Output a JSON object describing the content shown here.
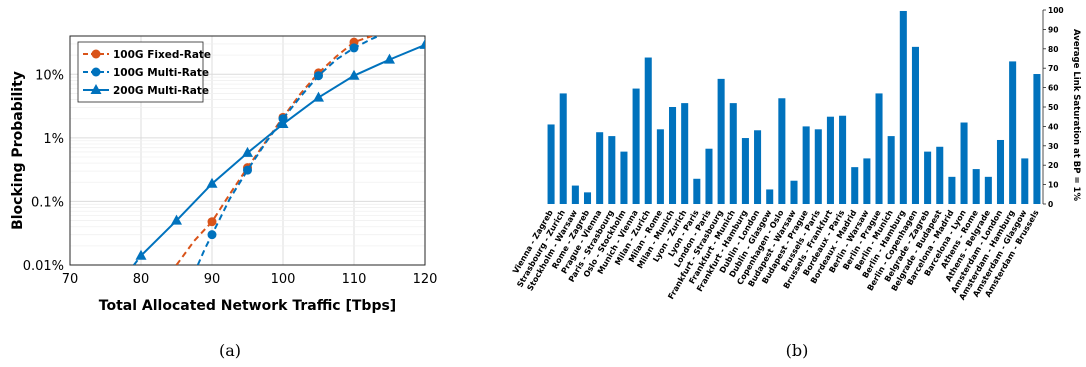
{
  "chart_data": [
    {
      "id": "a",
      "type": "line",
      "caption": "(a)",
      "xlabel": "Total Allocated Network Traffic [Tbps]",
      "ylabel": "Blocking Probability",
      "xlim": [
        70,
        120
      ],
      "xticks": [
        "70",
        "80",
        "90",
        "100",
        "110",
        "120"
      ],
      "yscale": "log",
      "ylim": [
        0.0001,
        0.4
      ],
      "yticks": [
        {
          "v": 0.0001,
          "label": "0.01%"
        },
        {
          "v": 0.001,
          "label": "0.1%"
        },
        {
          "v": 0.01,
          "label": "1%"
        },
        {
          "v": 0.1,
          "label": "10%"
        }
      ],
      "grid": true,
      "legend_position": "top-left",
      "series": [
        {
          "name": "100G Fixed-Rate",
          "color": "#d95319",
          "marker": "circle",
          "points": [
            [
              90,
              0.00048
            ],
            [
              95,
              0.0034
            ],
            [
              100,
              0.021
            ],
            [
              105,
              0.105
            ],
            [
              110,
              0.32
            ]
          ],
          "dashed": [
            [
              85,
              0.0001
            ],
            [
              87.5,
              0.00024
            ],
            [
              90,
              0.00048
            ],
            [
              92.5,
              0.0013
            ],
            [
              95,
              0.0034
            ],
            [
              97.5,
              0.0085
            ],
            [
              100,
              0.021
            ],
            [
              102.5,
              0.05
            ],
            [
              105,
              0.105
            ],
            [
              107.5,
              0.19
            ],
            [
              110,
              0.32
            ],
            [
              112.5,
              0.4
            ]
          ]
        },
        {
          "name": "100G Multi-Rate",
          "color": "#0072bd",
          "marker": "circle",
          "points": [
            [
              90,
              0.0003
            ],
            [
              95,
              0.0031
            ],
            [
              100,
              0.02
            ],
            [
              105,
              0.095
            ],
            [
              110,
              0.26
            ]
          ],
          "dashed": [
            [
              88,
              0.0001
            ],
            [
              89,
              0.00018
            ],
            [
              90,
              0.0003
            ],
            [
              92.5,
              0.0011
            ],
            [
              95,
              0.0031
            ],
            [
              97.5,
              0.0082
            ],
            [
              100,
              0.02
            ],
            [
              102.5,
              0.045
            ],
            [
              105,
              0.095
            ],
            [
              107.5,
              0.17
            ],
            [
              110,
              0.26
            ],
            [
              112.5,
              0.36
            ],
            [
              113.5,
              0.4
            ]
          ]
        },
        {
          "name": "200G Multi-Rate",
          "color": "#0072bd",
          "marker": "triangle",
          "points": [
            [
              80,
              0.00014
            ],
            [
              85,
              0.0005
            ],
            [
              90,
              0.0019
            ],
            [
              95,
              0.0058
            ],
            [
              100,
              0.0165
            ],
            [
              105,
              0.043
            ],
            [
              110,
              0.095
            ],
            [
              115,
              0.17
            ],
            [
              120,
              0.29
            ]
          ],
          "dashed": [
            [
              79,
              0.0001
            ],
            [
              80,
              0.00014
            ]
          ]
        }
      ]
    },
    {
      "id": "b",
      "type": "bar",
      "caption": "(b)",
      "ylabel": "Average Link Saturation at BP = 1%",
      "y_axis_side": "right",
      "ylim": [
        0,
        100
      ],
      "yticks": [
        "0",
        "10",
        "20",
        "30",
        "40",
        "50",
        "60",
        "70",
        "80",
        "90",
        "100"
      ],
      "color": "#0072bd",
      "categories": [
        "Vienna - Zagreb",
        "Strasbourg - Zurich",
        "Stockholm - Warsaw",
        "Rome - Zagreb",
        "Prague - Vienna",
        "Paris - Strasbourg",
        "Oslo - Stockholm",
        "Munich - Vienna",
        "Milan - Zurich",
        "Milan - Rome",
        "Milan - Munich",
        "Lyon - Zurich",
        "Lyon - Paris",
        "London - Paris",
        "Frankfurt - Strasbourg",
        "Frankfurt - Munich",
        "Frankfurt - Hamburg",
        "Dublin - London",
        "Dublin - Glasgow",
        "Copenhagen - Oslo",
        "Budapest - Warsaw",
        "Budapest - Prague",
        "Brussels - Paris",
        "Brussels - Frankfurt",
        "Bordeaux - Paris",
        "Bordeaux - Madrid",
        "Berlin - Warsaw",
        "Berlin - Prague",
        "Berlin - Munich",
        "Berlin - Hamburg",
        "Berlin - Copenhagen",
        "Belgrade - Zagreb",
        "Belgrade - Budapest",
        "Barcelona - Madrid",
        "Barcelona - Lyon",
        "Athens - Rome",
        "Athens - Belgrade",
        "Amsterdam - London",
        "Amsterdam - Hamburg",
        "Amsterdam - Glasgow",
        "Amsterdam - Brussels"
      ],
      "values": [
        41,
        57,
        9.5,
        6,
        37,
        35,
        27,
        59.5,
        75.5,
        38.5,
        50,
        52,
        13,
        28.5,
        64.5,
        52,
        34,
        38,
        7.5,
        54.5,
        12,
        40,
        38.5,
        45,
        45.5,
        19,
        23.5,
        57,
        35,
        99.5,
        81,
        27,
        29.5,
        14,
        42,
        18,
        14,
        33,
        73.5,
        23.5,
        67
      ]
    }
  ]
}
